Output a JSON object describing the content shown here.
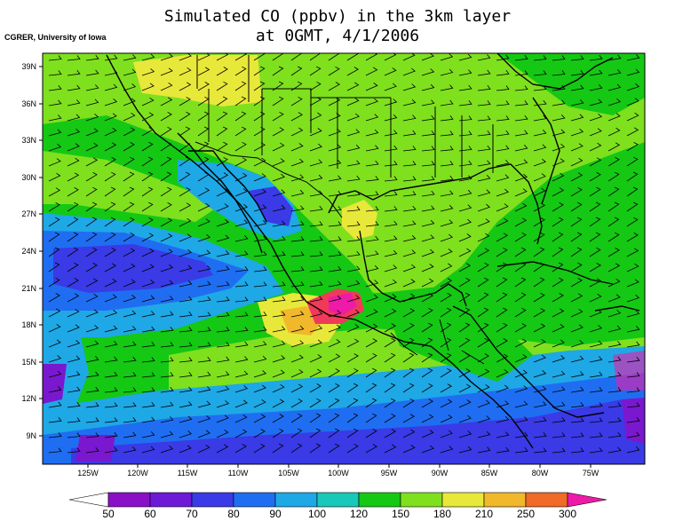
{
  "title_line1": "Simulated CO (ppbv) in the 3km layer",
  "title_line2": "at 0GMT, 4/1/2006",
  "credit": "CGRER, University of Iowa",
  "lat_labels": [
    "39N",
    "36N",
    "33N",
    "30N",
    "27N",
    "24N",
    "21N",
    "18N",
    "15N",
    "12N",
    "9N"
  ],
  "lon_labels": [
    "125W",
    "120W",
    "115W",
    "110W",
    "105W",
    "100W",
    "95W",
    "90W",
    "85W",
    "80W",
    "75W"
  ],
  "colorbar": {
    "labels": [
      "50",
      "60",
      "70",
      "80",
      "90",
      "100",
      "120",
      "150",
      "180",
      "210",
      "250",
      "300"
    ],
    "colors": [
      "#8a10c8",
      "#6c1ad6",
      "#3a3ae6",
      "#1f6ef2",
      "#1ea8e6",
      "#18c8b8",
      "#14c814",
      "#7fe01e",
      "#e8e83a",
      "#f0b82a",
      "#f06a28",
      "#f03a5a",
      "#ee1aa8"
    ]
  },
  "palette": {
    "purple": "#7a18d0",
    "blue_dark": "#3a3ae6",
    "blue": "#1f6ef2",
    "cyan": "#1ea8e6",
    "teal": "#18c8b8",
    "green": "#14c814",
    "lightgreen": "#7fe01e",
    "yellow": "#e8e83a",
    "orange": "#f0b82a",
    "red": "#f03a5a",
    "pink": "#ee1aa8"
  }
}
